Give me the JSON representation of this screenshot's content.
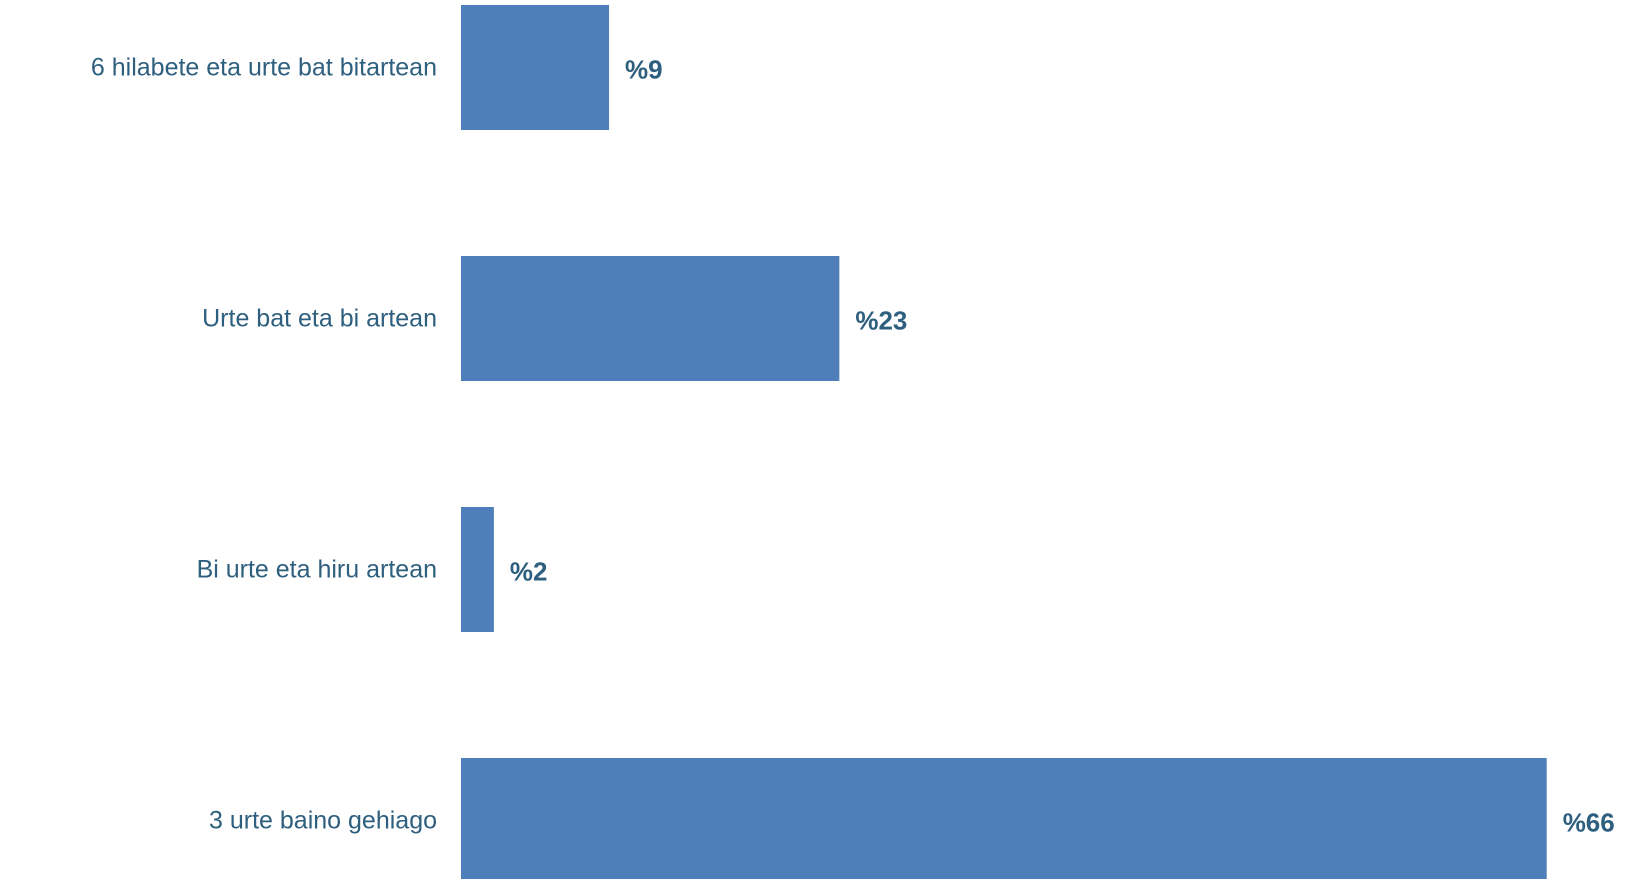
{
  "chart_data": {
    "type": "bar",
    "orientation": "horizontal",
    "categories": [
      "6 hilabete eta urte bat bitartean",
      "Urte bat eta bi artean",
      "Bi urte eta hiru artean",
      "3 urte baino gehiago"
    ],
    "values": [
      9,
      23,
      2,
      66
    ],
    "value_labels": [
      "%9",
      "%23",
      "%2",
      "%66"
    ],
    "title": "",
    "xlabel": "",
    "ylabel": "",
    "xlim": [
      0,
      66
    ],
    "grid": false,
    "legend": "none",
    "colors": {
      "bar": "#4f7fba",
      "text": "#2e5f7e"
    }
  }
}
